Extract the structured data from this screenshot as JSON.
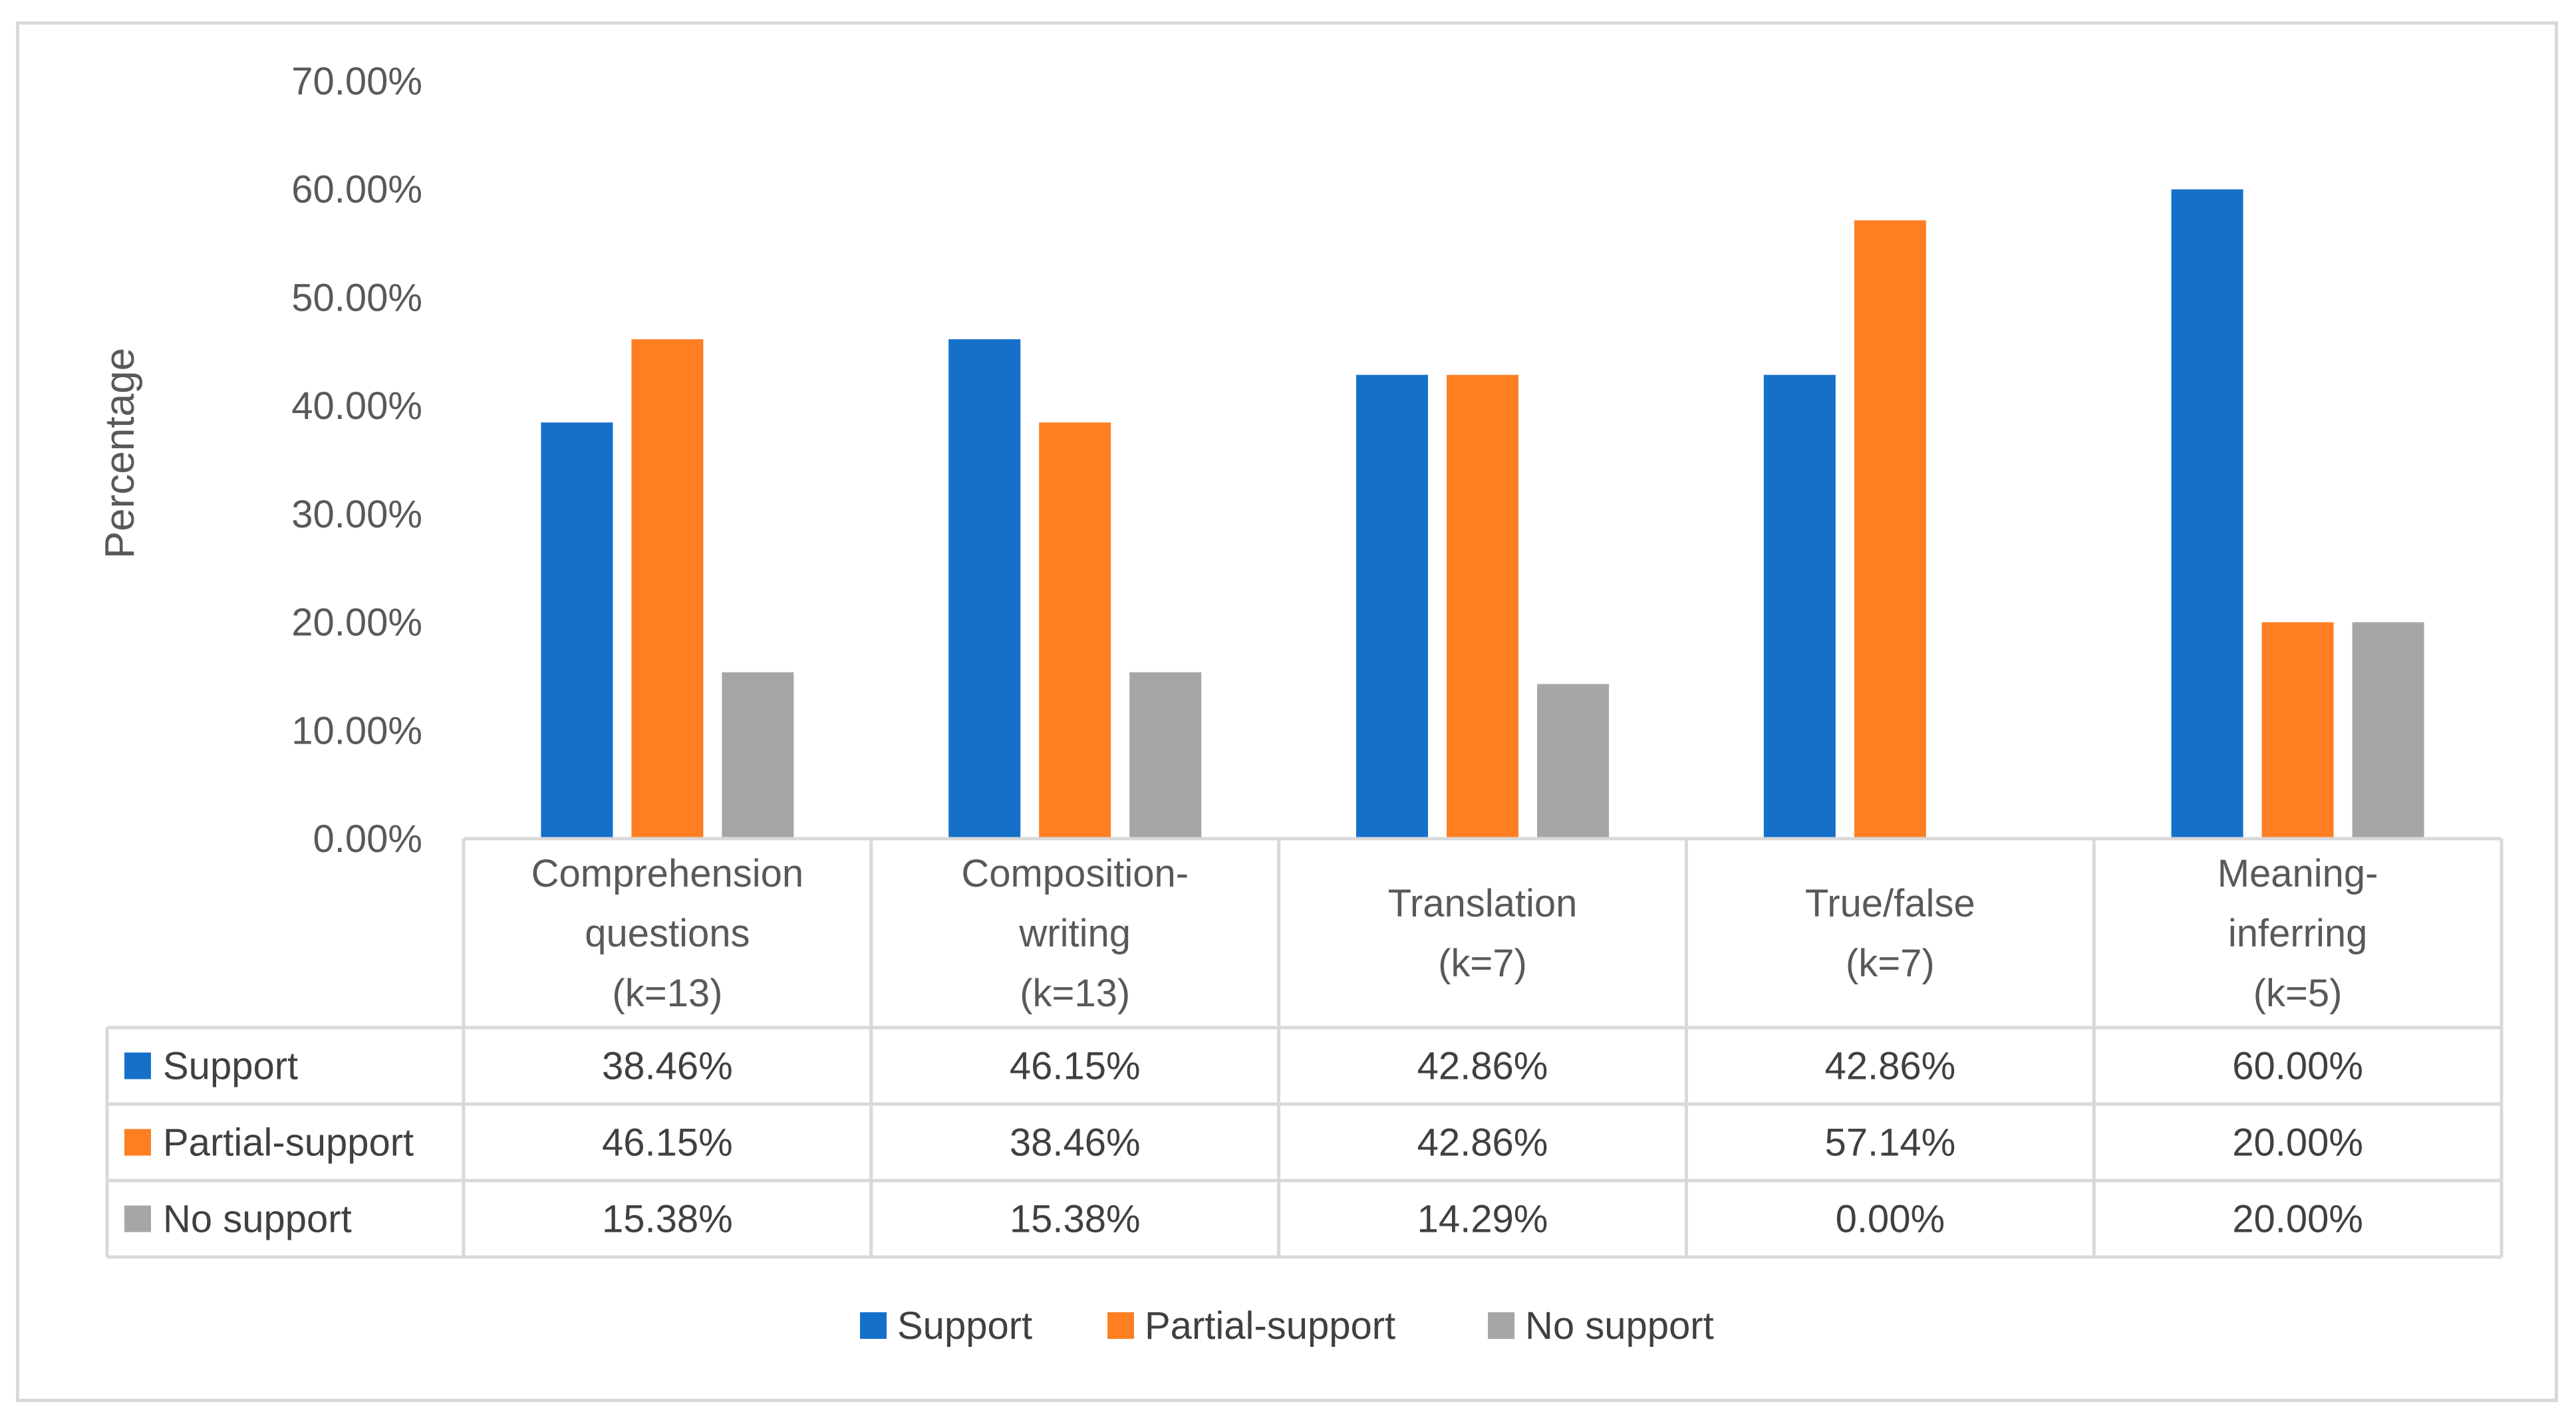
{
  "chart_data": {
    "type": "bar",
    "title": "",
    "xlabel": "",
    "ylabel": "Percentage",
    "ylim": [
      0,
      70
    ],
    "y_ticks": [
      0,
      10,
      20,
      30,
      40,
      50,
      60,
      70
    ],
    "y_tick_labels": [
      "0.00%",
      "10.00%",
      "20.00%",
      "30.00%",
      "40.00%",
      "50.00%",
      "60.00%",
      "70.00%"
    ],
    "categories": [
      [
        "Comprehension",
        "questions",
        "(k=13)"
      ],
      [
        "Composition-",
        "writing",
        "(k=13)"
      ],
      [
        "Translation",
        "(k=7)"
      ],
      [
        "True/false",
        "(k=7)"
      ],
      [
        "Meaning-",
        "inferring",
        "(k=5)"
      ]
    ],
    "series": [
      {
        "name": "Support",
        "color": "#1570ca",
        "values": [
          38.46,
          46.15,
          42.86,
          42.86,
          60.0
        ],
        "labels": [
          "38.46%",
          "46.15%",
          "42.86%",
          "42.86%",
          "60.00%"
        ]
      },
      {
        "name": "Partial-support",
        "color": "#fd7f22",
        "values": [
          46.15,
          38.46,
          42.86,
          57.14,
          20.0
        ],
        "labels": [
          "46.15%",
          "38.46%",
          "42.86%",
          "57.14%",
          "20.00%"
        ]
      },
      {
        "name": "No support",
        "color": "#a6a6a6",
        "values": [
          15.38,
          15.38,
          14.29,
          0.0,
          20.0
        ],
        "labels": [
          "15.38%",
          "15.38%",
          "14.29%",
          "0.00%",
          "20.00%"
        ]
      }
    ],
    "legend_position": "bottom",
    "data_table": true
  }
}
